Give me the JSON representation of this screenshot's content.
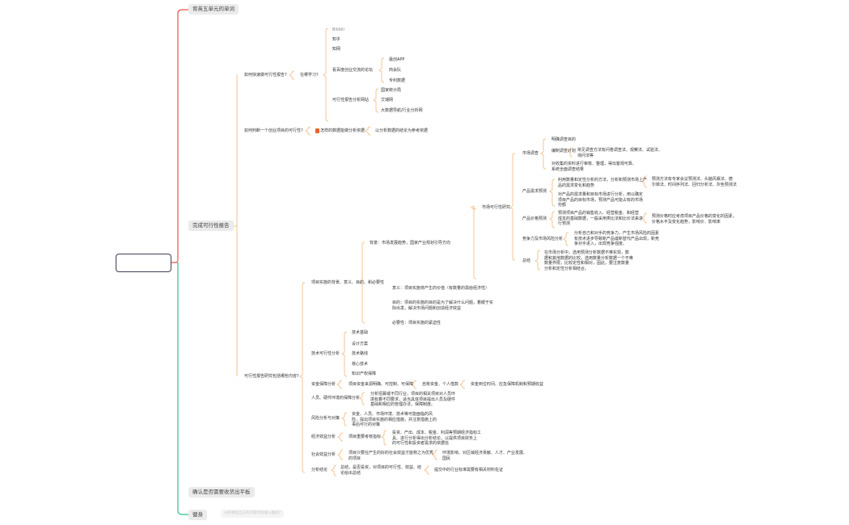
{
  "root": {
    "label": ""
  },
  "branches": {
    "words": "背英五单元的单词",
    "report": "完成可行性报告",
    "tablet": "确认是否需要收货出平板",
    "fitness": "健身",
    "fitness_ghost": "分析哪些自己有可替代的收入模式?"
  },
  "colors": {
    "red_branch": "#e8534a",
    "green_branch": "#2fbf8a",
    "orange_branch": "#f5c08a",
    "root_border": "#3d3d5c"
  },
  "quick": {
    "q": "如何快速做可行性报告?",
    "where": "在哪学习?",
    "sources": [
      "Bilibili",
      "知乎",
      "知网",
      "看百度创业交流的论坛",
      "可行性报告分析网站"
    ],
    "forums": [
      "最创APP",
      "商会队",
      "专利数据"
    ],
    "sites": [
      "国家统计局",
      "艾瑞网",
      "大数据导航/行业分析网"
    ]
  },
  "judge": {
    "q": "如何判断一个创业项目的可行性?",
    "data": "怎样的数据能做分析依据",
    "conclusion": "以分析数据的结论为参考依据"
  },
  "content": {
    "q": "可行性报告研究包括哪些内容?",
    "background": {
      "label": "项目实施的背景、意义、目的、和必要性",
      "bg": "背景：市场发展趋势，国家产业规划引导方向",
      "meaning": "意义：项目实施将产生的价值（有数量的需给经济性）",
      "purpose": "目的：项目的实施的目的是为了解决什么问题，着眼于实际出发，解决市场问题和创造经济效益",
      "necessity": "必要性：项目实施的紧迫性"
    },
    "market": {
      "label": "市场可行性研究",
      "survey": {
        "label": "市场调查",
        "goal": "明确调查目的",
        "plan": "编制调查计划",
        "methods": "常见调查方法有问卷调查法、观察法、试验法、\n询问法等",
        "result": "对收集的资料进行审核、整理，得出客观可靠、\n系统全面调查结果"
      },
      "demand": {
        "label": "产品需求预测",
        "a": "利用数量和定性分析的方法，分析和预测市场上产\n品的需求变化和趋势",
        "a_methods": "预测方法有专家会议预测法、头脑风暴法、德\n尔菲法、时间序列法、回归分析法、灰色预测法",
        "b": "对产品的需求量和目标市场进行分析，用以确定\n项目产品的目标市场，预测产品可能占有的市场\n份额"
      },
      "price": {
        "label": "产品价格预测",
        "a": "预测项目产品的销售收入、经营税金、和经营\n成本的基础数据，一般采用类比法和比价法来进\n行预测",
        "b": "预测价格时应考虑项目产品价格的变化的因素，\n价格水平及变化趋势，影响价、影响率"
      },
      "competition": {
        "label": "竞争力及市场风险分析",
        "a": "分析自己和对手的竞争力，产生市场风险的因素\n有技术进步导致新产品或新替代产品出现，新竞\n争对手进入，出现竞争强度。"
      },
      "summary": {
        "label": "总结",
        "a": "在市场分析中，选用预测分析数据不难实现，数\n据和其他数据的比较，选用数量分析数据一个不难\n数量界限，比较定性和相对，因此，要注意数量\n分析和定性分析相结合。"
      }
    },
    "tech": {
      "label": "技术可行性分析",
      "items": [
        "技术基础",
        "设计方案",
        "技术路线",
        "核心技术",
        "知识产权保障"
      ]
    },
    "funds": {
      "label": "资金保障分析",
      "a": "项目资金来源明确、可控制、可保障",
      "b": "自筹资金、个人借款",
      "c": "资金到位时间、应急保障机制和预期收益"
    },
    "staff": {
      "label": "人员、硬件环境的保障分析",
      "a": "分析招募或不同行业，项目的相关项目对人员环\n境有着不同要求，适当具体项目提出人员及硬件\n基础和相应的管理办法，保障制度。"
    },
    "risk": {
      "label": "风险分析与对策",
      "a": "资金、人员、市场环境、技术等可能面临的风\n险，提出项目实施的相应措施，并注意措施上的\n事后可行的对策"
    },
    "economic": {
      "label": "经济效益分析",
      "a": "项目重要考核指标",
      "b": "投资、产出、成本、税金、利润等预期经济指标工\n具、进行分析得出分析结论，以提供项目财务上\n的可行性和投资者需求的依据信"
    },
    "social": {
      "label": "社会效益分析",
      "a": "项目只要在产生的好的社会效益才能称之为优秀\n的项目",
      "b": "环境影响、对区域经济贡献、人才、产业发展、\n国民"
    },
    "conclusion": {
      "label": "分析结论",
      "a": "总结，是否投资，对项目的可行性、效益、结\n论给出总结",
      "b": "提交中的行业标准需要有相关材料佐证"
    }
  }
}
